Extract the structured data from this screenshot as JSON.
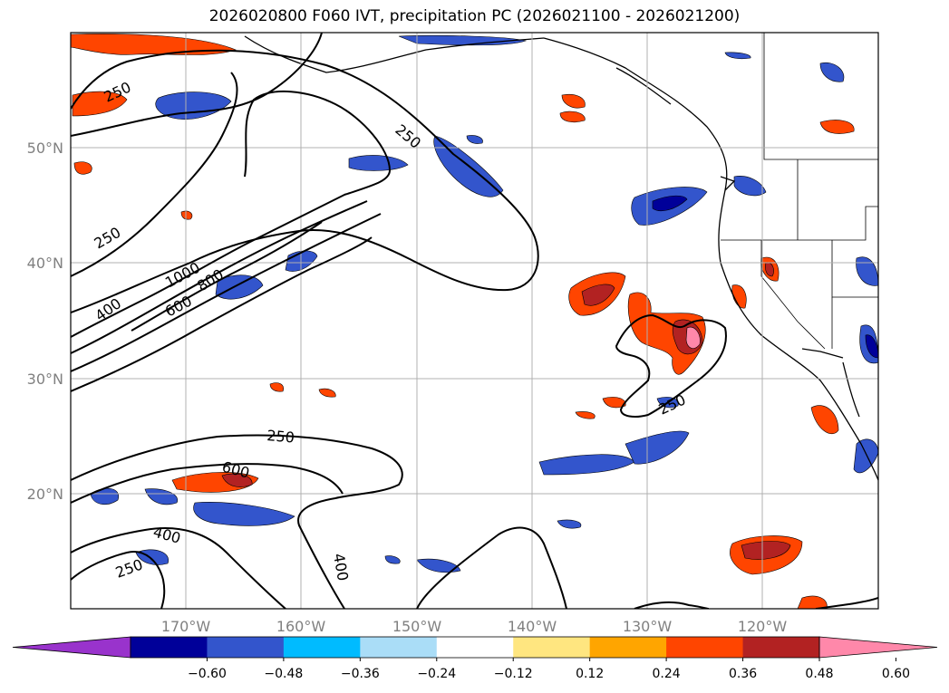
{
  "title": "2026020800 F060 IVT, precipitation PC (2026021100 - 2026021200)",
  "map": {
    "lon_range": [
      -180,
      -110
    ],
    "lat_range": [
      10,
      60
    ],
    "lon_ticks": [
      "170°W",
      "160°W",
      "150°W",
      "140°W",
      "130°W",
      "120°W"
    ],
    "lat_ticks": [
      "50°N",
      "40°N",
      "30°N",
      "20°N"
    ],
    "grid": true
  },
  "ivt_contour_labels": [
    "250",
    "250",
    "1000",
    "800",
    "600",
    "400",
    "250",
    "250",
    "600",
    "400",
    "250",
    "400",
    "250"
  ],
  "colorbar": {
    "orientation": "horizontal",
    "extend": "both",
    "tick_labels": [
      "−0.60",
      "−0.48",
      "−0.36",
      "−0.24",
      "−0.12",
      "0.12",
      "0.24",
      "0.36",
      "0.48",
      "0.60"
    ],
    "colors": [
      "#9933cc",
      "#000099",
      "#3355cc",
      "#00bbff",
      "#aaddf7",
      "#ffffff",
      "#ffe680",
      "#ffa500",
      "#ff4500",
      "#b22222",
      "#ff88aa"
    ]
  }
}
